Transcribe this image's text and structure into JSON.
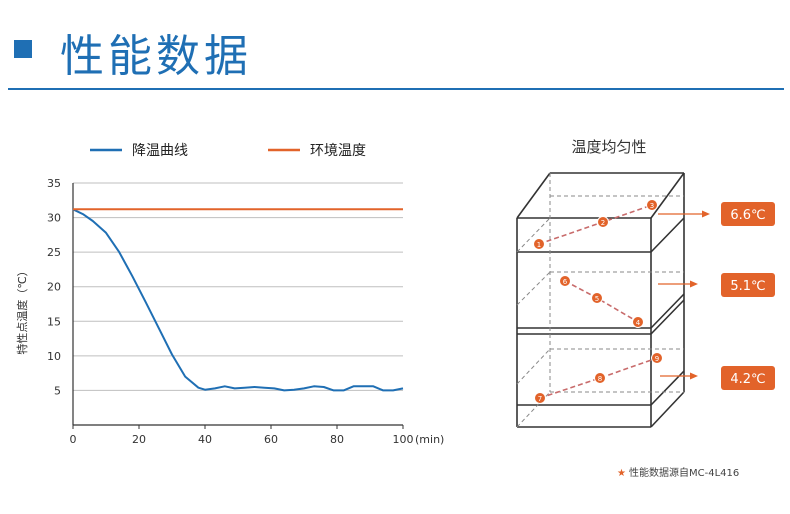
{
  "header": {
    "title": "性能数据"
  },
  "colors": {
    "accent": "#1f6fb4",
    "cooling": "#1f6fb4",
    "ambient": "#e2632a",
    "label_bg": "#e2632a",
    "grid": "#bfbfbf"
  },
  "chart_data": [
    {
      "type": "line",
      "title": "",
      "ylabel": "特性点温度（℃）",
      "xlabel": "",
      "x_unit": "(min)",
      "xlim": [
        0,
        100
      ],
      "ylim": [
        0,
        35
      ],
      "xticks": [
        "0",
        "20",
        "40",
        "60",
        "80",
        "100"
      ],
      "yticks": [
        "5",
        "10",
        "15",
        "20",
        "25",
        "30",
        "35"
      ],
      "grid": true,
      "legend": "top",
      "series": [
        {
          "name": "降温曲线",
          "x": [
            0,
            3,
            6,
            10,
            14,
            18,
            22,
            26,
            30,
            34,
            38,
            40,
            43,
            46,
            49,
            52,
            55,
            58,
            61,
            64,
            67,
            70,
            73,
            76,
            79,
            82,
            85,
            88,
            91,
            94,
            97,
            100
          ],
          "y": [
            31.2,
            30.5,
            29.5,
            27.8,
            25.0,
            21.5,
            17.8,
            14.0,
            10.2,
            7.0,
            5.4,
            5.1,
            5.3,
            5.6,
            5.3,
            5.4,
            5.5,
            5.4,
            5.3,
            5.0,
            5.1,
            5.3,
            5.6,
            5.5,
            5.0,
            5.0,
            5.6,
            5.6,
            5.6,
            5.0,
            5.0,
            5.3
          ]
        },
        {
          "name": "环境温度",
          "x": [
            0,
            100
          ],
          "y": [
            31.2,
            31.2
          ]
        }
      ]
    },
    {
      "type": "diagram",
      "title": "温度均匀性",
      "points": [
        "1",
        "2",
        "3",
        "6",
        "5",
        "4",
        "7",
        "8",
        "9"
      ],
      "values": [
        "6.6℃",
        "5.1℃",
        "4.2℃"
      ]
    }
  ],
  "footnote": {
    "star": "★",
    "text": "性能数据源自MC-4L416"
  }
}
